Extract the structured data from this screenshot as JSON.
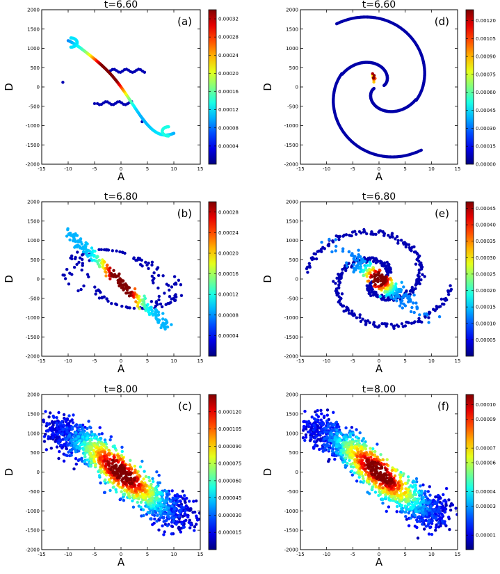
{
  "chart_data": [
    {
      "type": "scatter",
      "panel_label": "(a)",
      "title": "t=6.60",
      "xlabel": "A",
      "ylabel": "D",
      "xlim": [
        -15,
        15
      ],
      "ylim": [
        -2000,
        2000
      ],
      "x_ticks": [
        "-15",
        "-10",
        "-5",
        "0",
        "5",
        "10",
        "15"
      ],
      "y_ticks": [
        "-2000",
        "-1500",
        "-1000",
        "-500",
        "0",
        "500",
        "1000",
        "1500",
        "2000"
      ],
      "colorbar": {
        "min": 0,
        "max": 0.00034,
        "tick_values": [
          4e-05,
          8e-05,
          0.00012,
          0.00016,
          0.0002,
          0.00024,
          0.00028,
          0.00032
        ],
        "tick_labels": [
          "0.00004",
          "0.00008",
          "0.00012",
          "0.00016",
          "0.00020",
          "0.00024",
          "0.00028",
          "0.00032"
        ]
      },
      "shape": "s-curve",
      "colormap": "jet"
    },
    {
      "type": "scatter",
      "panel_label": "(b)",
      "title": "t=6.80",
      "xlabel": "A",
      "ylabel": "D",
      "xlim": [
        -15,
        15
      ],
      "ylim": [
        -2000,
        2000
      ],
      "x_ticks": [
        "-15",
        "-10",
        "-5",
        "0",
        "5",
        "10",
        "15"
      ],
      "y_ticks": [
        "-2000",
        "-1500",
        "-1000",
        "-500",
        "0",
        "500",
        "1000",
        "1500",
        "2000"
      ],
      "colorbar": {
        "min": 0,
        "max": 0.0003,
        "tick_values": [
          4e-05,
          8e-05,
          0.00012,
          0.00016,
          0.0002,
          0.00024,
          0.00028
        ],
        "tick_labels": [
          "0.00004",
          "0.00008",
          "0.00012",
          "0.00016",
          "0.00020",
          "0.00024",
          "0.00028"
        ]
      },
      "shape": "diagonal-band-with-loops",
      "colormap": "jet"
    },
    {
      "type": "scatter",
      "panel_label": "(c)",
      "title": "t=8.00",
      "xlabel": "A",
      "ylabel": "D",
      "xlim": [
        -15,
        15
      ],
      "ylim": [
        -2000,
        2000
      ],
      "x_ticks": [
        "-15",
        "-10",
        "-5",
        "0",
        "5",
        "10",
        "15"
      ],
      "y_ticks": [
        "-2000",
        "-1500",
        "-1000",
        "-500",
        "0",
        "500",
        "1000",
        "1500",
        "2000"
      ],
      "colorbar": {
        "min": 0,
        "max": 0.000135,
        "tick_values": [
          1.5e-05,
          3e-05,
          4.5e-05,
          6e-05,
          7.5e-05,
          9e-05,
          0.000105,
          0.00012
        ],
        "tick_labels": [
          "0.000015",
          "0.000030",
          "0.000045",
          "0.000060",
          "0.000075",
          "0.000090",
          "0.000105",
          "0.000120"
        ]
      },
      "shape": "diffuse-diagonal-cloud",
      "colormap": "jet"
    },
    {
      "type": "scatter",
      "panel_label": "(d)",
      "title": "t=6.60",
      "xlabel": "A",
      "ylabel": "D",
      "xlim": [
        -15,
        15
      ],
      "ylim": [
        -2000,
        2000
      ],
      "x_ticks": [
        "-15",
        "-10",
        "-5",
        "0",
        "5",
        "10",
        "15"
      ],
      "y_ticks": [
        "-2000",
        "-1500",
        "-1000",
        "-500",
        "0",
        "500",
        "1000",
        "1500",
        "2000"
      ],
      "colorbar": {
        "min": 0,
        "max": 0.00129,
        "tick_values": [
          0,
          0.00015,
          0.0003,
          0.00045,
          0.0006,
          0.00075,
          0.0009,
          0.00105,
          0.0012
        ],
        "tick_labels": [
          "0.00000",
          "0.00015",
          "0.00030",
          "0.00045",
          "0.00060",
          "0.00075",
          "0.00090",
          "0.00105",
          "0.00120"
        ]
      },
      "shape": "spiral-arms",
      "colormap": "jet"
    },
    {
      "type": "scatter",
      "panel_label": "(e)",
      "title": "t=6.80",
      "xlabel": "A",
      "ylabel": "D",
      "xlim": [
        -15,
        15
      ],
      "ylim": [
        -2000,
        2000
      ],
      "x_ticks": [
        "-15",
        "-10",
        "-5",
        "0",
        "5",
        "10",
        "15"
      ],
      "y_ticks": [
        "-2000",
        "-1500",
        "-1000",
        "-500",
        "0",
        "500",
        "1000",
        "1500",
        "2000"
      ],
      "colorbar": {
        "min": 0,
        "max": 0.00047,
        "tick_values": [
          5e-05,
          0.0001,
          0.00015,
          0.0002,
          0.00025,
          0.0003,
          0.00035,
          0.0004,
          0.00045
        ],
        "tick_labels": [
          "0.00005",
          "0.00010",
          "0.00015",
          "0.00020",
          "0.00025",
          "0.00030",
          "0.00035",
          "0.00040",
          "0.00045"
        ]
      },
      "shape": "spiral-core",
      "colormap": "jet"
    },
    {
      "type": "scatter",
      "panel_label": "(f)",
      "title": "t=8.00",
      "xlabel": "A",
      "ylabel": "D",
      "xlim": [
        -15,
        15
      ],
      "ylim": [
        -2000,
        2000
      ],
      "x_ticks": [
        "-15",
        "-10",
        "-5",
        "0",
        "5",
        "10",
        "15"
      ],
      "y_ticks": [
        "-2000",
        "-1500",
        "-1000",
        "-500",
        "0",
        "500",
        "1000",
        "1500",
        "2000"
      ],
      "colorbar": {
        "min": 0,
        "max": 0.000107,
        "tick_values": [
          1e-05,
          3e-05,
          4e-05,
          6e-05,
          7e-05,
          9e-05,
          0.0001
        ],
        "tick_labels": [
          "0.00001",
          "0.00003",
          "0.00004",
          "0.00006",
          "0.00007",
          "0.00009",
          "0.00010"
        ]
      },
      "shape": "diffuse-diagonal-cloud",
      "colormap": "jet"
    }
  ]
}
